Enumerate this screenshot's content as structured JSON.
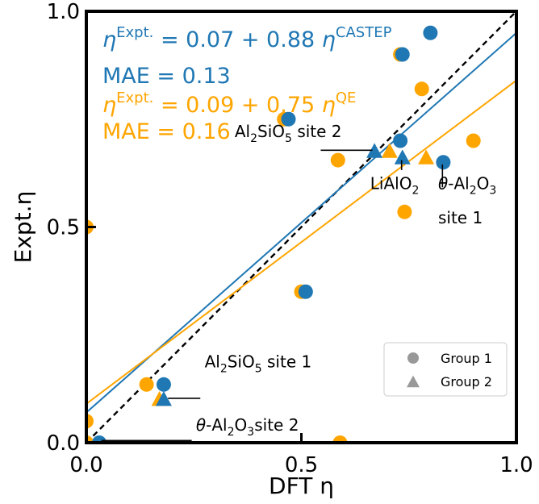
{
  "chart_data": {
    "type": "scatter",
    "xlabel": "DFT η",
    "ylabel": "Expt.η",
    "xlim": [
      0.0,
      1.0
    ],
    "ylim": [
      0.0,
      1.0
    ],
    "x_ticks": [
      {
        "v": 0.0,
        "label": "0.0"
      },
      {
        "v": 0.5,
        "label": "0.5"
      },
      {
        "v": 1.0,
        "label": "1.0"
      }
    ],
    "y_ticks": [
      {
        "v": 0.0,
        "label": "0.0"
      },
      {
        "v": 0.5,
        "label": "0.5"
      },
      {
        "v": 1.0,
        "label": "1.0"
      }
    ],
    "grid": false,
    "colors": {
      "castep": "#1f77b4",
      "qe": "#ffa500",
      "legend_marker": "#999999",
      "diagonal": "#000000"
    },
    "series": [
      {
        "key": "castep",
        "color": "#1f77b4",
        "equation": {
          "lhs_base": "η",
          "lhs_sup": "Expt.",
          "rhs": " = 0.07 + 0.88 ",
          "rhs_base": "η",
          "rhs_sup": "CASTEP"
        },
        "mae_label": "MAE = 0.13",
        "fit": {
          "intercept": 0.07,
          "slope": 0.88
        },
        "group1": [
          {
            "x": 0.03,
            "y": 0.0
          },
          {
            "x": 0.18,
            "y": 0.135
          },
          {
            "x": 0.47,
            "y": 0.75
          },
          {
            "x": 0.51,
            "y": 0.35
          },
          {
            "x": 0.735,
            "y": 0.9
          },
          {
            "x": 0.73,
            "y": 0.7
          },
          {
            "x": 0.83,
            "y": 0.65
          },
          {
            "x": 0.8,
            "y": 0.95
          }
        ],
        "group2": [
          {
            "x": 0.18,
            "y": 0.1
          },
          {
            "x": 0.67,
            "y": 0.675
          },
          {
            "x": 0.735,
            "y": 0.66
          }
        ]
      },
      {
        "key": "qe",
        "color": "#ffa500",
        "equation": {
          "lhs_base": "η",
          "lhs_sup": "Expt.",
          "rhs": " = 0.09 + 0.75 ",
          "rhs_base": "η",
          "rhs_sup": "QE"
        },
        "mae_label": "MAE = 0.16",
        "fit": {
          "intercept": 0.09,
          "slope": 0.75
        },
        "group1": [
          {
            "x": 0.0,
            "y": 0.0
          },
          {
            "x": 0.0,
            "y": 0.05
          },
          {
            "x": 0.0,
            "y": 0.5
          },
          {
            "x": 0.14,
            "y": 0.135
          },
          {
            "x": 0.46,
            "y": 0.75
          },
          {
            "x": 0.5,
            "y": 0.35
          },
          {
            "x": 0.59,
            "y": 0.0
          },
          {
            "x": 0.585,
            "y": 0.655
          },
          {
            "x": 0.73,
            "y": 0.9
          },
          {
            "x": 0.74,
            "y": 0.535
          },
          {
            "x": 0.78,
            "y": 0.82
          },
          {
            "x": 0.9,
            "y": 0.7
          }
        ],
        "group2": [
          {
            "x": 0.17,
            "y": 0.1
          },
          {
            "x": 0.705,
            "y": 0.675
          },
          {
            "x": 0.79,
            "y": 0.66
          }
        ]
      }
    ],
    "annotations": [
      {
        "id": "al2sio5-site2",
        "parts": [
          {
            "t": "Al"
          },
          {
            "t": "2",
            "sub": true
          },
          {
            "t": "SiO"
          },
          {
            "t": "5",
            "sub": true
          },
          {
            "t": " site 2"
          }
        ],
        "x": 0.345,
        "y": 0.708,
        "leader": [
          [
            0.545,
            0.678
          ],
          [
            0.665,
            0.678
          ]
        ]
      },
      {
        "id": "lialo2",
        "parts": [
          {
            "t": "LiAlO"
          },
          {
            "t": "2",
            "sub": true
          }
        ],
        "x": 0.66,
        "y": 0.588,
        "leader": [
          [
            0.733,
            0.655
          ],
          [
            0.733,
            0.632
          ]
        ]
      },
      {
        "id": "theta-site1",
        "parts": [
          {
            "t": "θ",
            "italic": true
          },
          {
            "t": "-Al"
          },
          {
            "t": "2",
            "sub": true
          },
          {
            "t": "O"
          },
          {
            "t": "3",
            "sub": true
          }
        ],
        "line2": "site 1",
        "x": 0.818,
        "y": 0.588,
        "y2": 0.508,
        "leader": [
          [
            0.828,
            0.645
          ],
          [
            0.828,
            0.592
          ]
        ]
      },
      {
        "id": "al2sio5-site1",
        "parts": [
          {
            "t": "Al"
          },
          {
            "t": "2",
            "sub": true
          },
          {
            "t": "SiO"
          },
          {
            "t": "5",
            "sub": true
          },
          {
            "t": " site 1"
          }
        ],
        "x": 0.275,
        "y": 0.175,
        "leader": [
          [
            0.19,
            0.103
          ],
          [
            0.265,
            0.103
          ]
        ]
      },
      {
        "id": "theta-site2",
        "parts": [
          {
            "t": "θ",
            "italic": true
          },
          {
            "t": "-Al"
          },
          {
            "t": "2",
            "sub": true
          },
          {
            "t": "O"
          },
          {
            "t": "3",
            "sub": true
          },
          {
            "t": "site 2"
          }
        ],
        "x": 0.255,
        "y": 0.028,
        "leader": [
          [
            0.035,
            0.005
          ],
          [
            0.245,
            0.005
          ]
        ]
      }
    ],
    "legend": {
      "position": "lower-right",
      "entries": [
        {
          "marker": "circle",
          "label": "Group 1"
        },
        {
          "marker": "triangle",
          "label": "Group 2"
        }
      ]
    }
  }
}
